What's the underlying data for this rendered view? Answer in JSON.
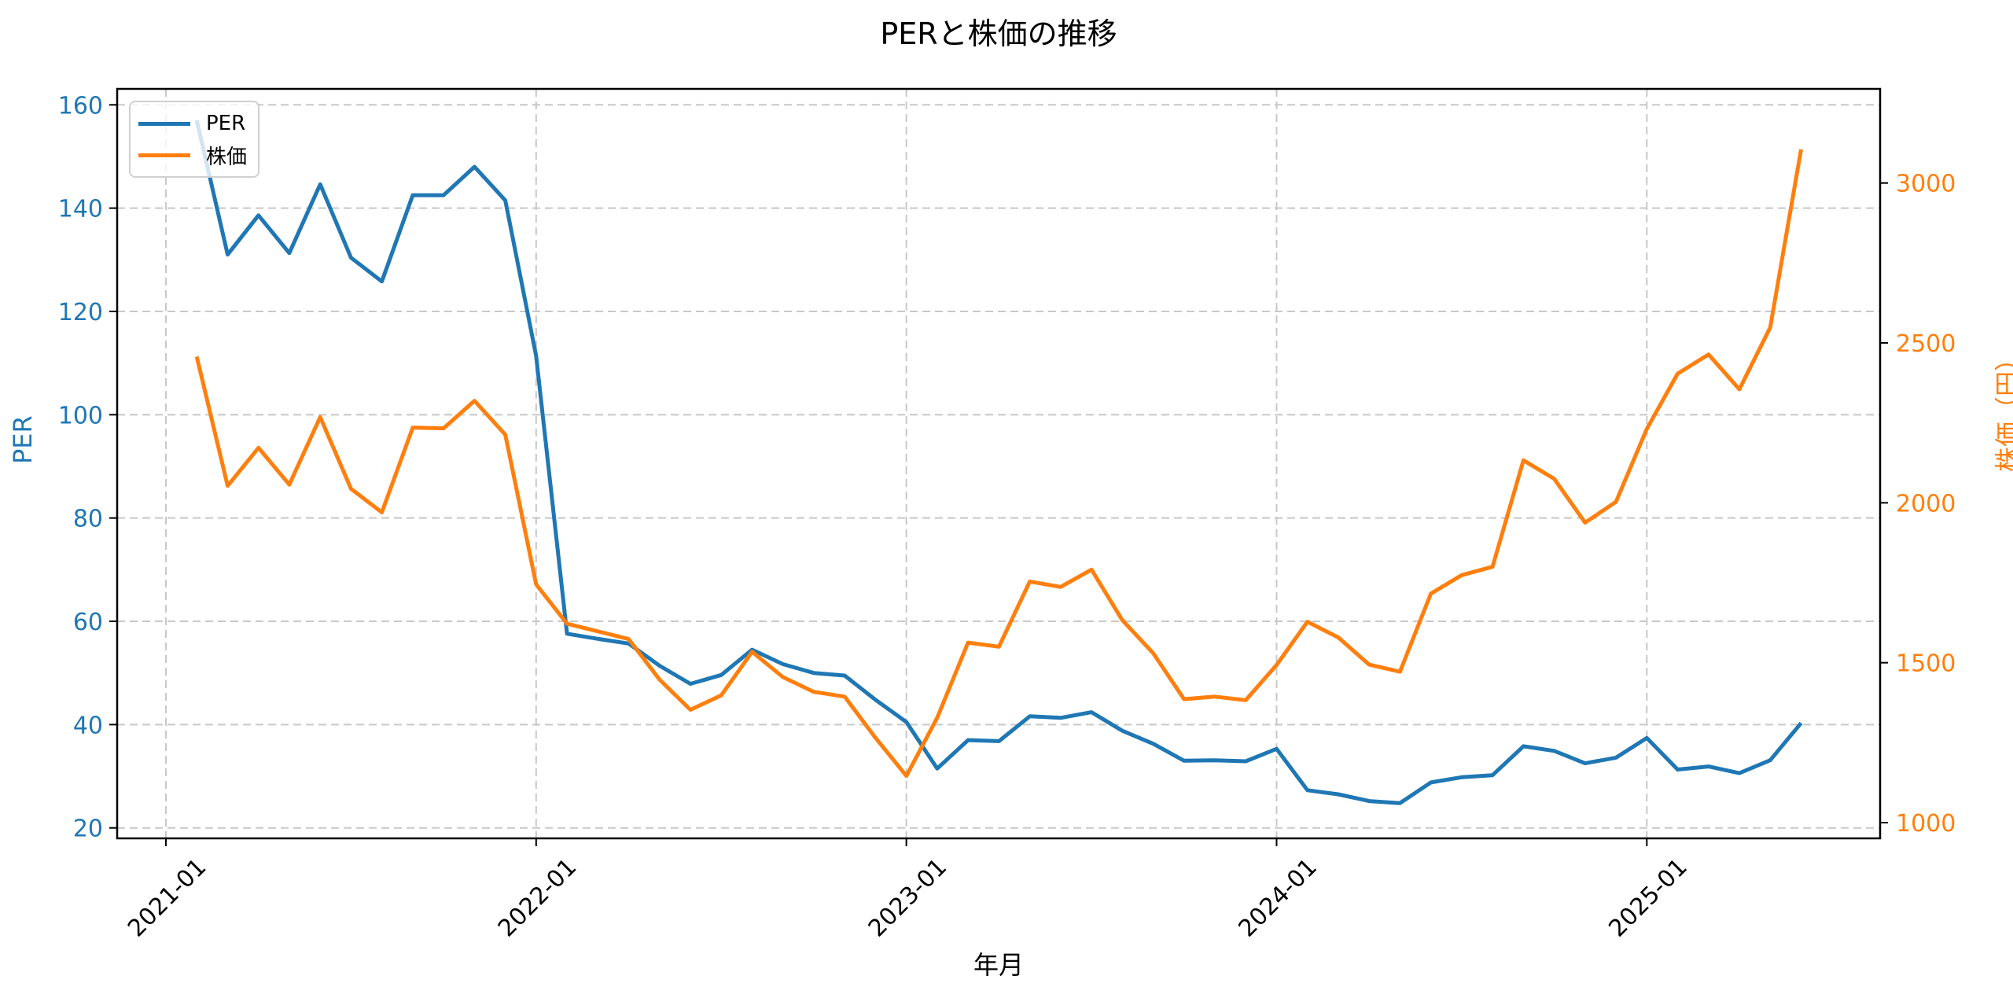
{
  "figure": {
    "title": "PERと株価の推移",
    "xlabel": "年月",
    "ylabel_left": "PER",
    "ylabel_right": "株価（円）",
    "colors": {
      "per": "#1f77b4",
      "price": "#ff7f0e",
      "grid": "#c8c8c8",
      "axis": "#000000"
    },
    "legend": {
      "position": "upper left",
      "items": [
        {
          "label": "PER",
          "color": "#1f77b4"
        },
        {
          "label": "株価",
          "color": "#ff7f0e"
        }
      ]
    }
  },
  "chart_data": {
    "type": "line",
    "title": "PERと株価の推移",
    "xlabel": "年月",
    "ylabel": "PER",
    "ylabel_right": "株価（円）",
    "grid": true,
    "legend_position": "upper left",
    "x_tick_labels": [
      "2021-01",
      "2022-01",
      "2023-01",
      "2024-01",
      "2025-01"
    ],
    "x_tick_rotation": 45,
    "y_left": {
      "label": "PER",
      "ticks": [
        20,
        40,
        60,
        80,
        100,
        120,
        140,
        160
      ],
      "ylim": [
        18,
        163
      ],
      "color": "#1f77b4"
    },
    "y_right": {
      "label": "株価（円）",
      "ticks": [
        1000,
        1500,
        2000,
        2500,
        3000
      ],
      "ylim": [
        951,
        3294
      ],
      "color": "#ff7f0e"
    },
    "x": [
      "2021-02",
      "2021-03",
      "2021-04",
      "2021-05",
      "2021-06",
      "2021-07",
      "2021-08",
      "2021-09",
      "2021-10",
      "2021-11",
      "2021-12",
      "2022-01",
      "2022-02",
      "2022-03",
      "2022-04",
      "2022-05",
      "2022-06",
      "2022-07",
      "2022-08",
      "2022-09",
      "2022-10",
      "2022-11",
      "2022-12",
      "2023-01",
      "2023-02",
      "2023-03",
      "2023-04",
      "2023-05",
      "2023-06",
      "2023-07",
      "2023-08",
      "2023-09",
      "2023-10",
      "2023-11",
      "2023-12",
      "2024-01",
      "2024-02",
      "2024-03",
      "2024-04",
      "2024-05",
      "2024-06",
      "2024-07",
      "2024-08",
      "2024-09",
      "2024-10",
      "2024-11",
      "2024-12",
      "2025-01",
      "2025-02",
      "2025-03",
      "2025-04",
      "2025-05",
      "2025-06"
    ],
    "series": [
      {
        "name": "PER",
        "axis": "left",
        "color": "#1f77b4",
        "values": [
          157.0,
          131.0,
          138.6,
          131.3,
          144.6,
          130.4,
          125.8,
          142.5,
          142.5,
          148.0,
          141.5,
          111.4,
          57.6,
          56.6,
          55.7,
          51.4,
          47.9,
          49.6,
          54.5,
          51.7,
          50.0,
          49.5,
          44.8,
          40.5,
          31.5,
          37.0,
          36.8,
          41.6,
          41.3,
          42.4,
          38.8,
          36.3,
          33.0,
          33.1,
          32.9,
          35.3,
          27.3,
          26.5,
          25.2,
          24.8,
          28.8,
          29.8,
          30.2,
          35.8,
          34.9,
          32.5,
          33.6,
          37.4,
          31.3,
          31.9,
          30.6,
          33.1,
          40.3
        ]
      },
      {
        "name": "株価",
        "axis": "right",
        "color": "#ff7f0e",
        "values": [
          2457,
          2053,
          2172,
          2057,
          2268,
          2044,
          1970,
          2235,
          2233,
          2319,
          2213,
          1745,
          1622,
          1598,
          1574,
          1447,
          1353,
          1398,
          1534,
          1455,
          1409,
          1394,
          1265,
          1146,
          1328,
          1563,
          1550,
          1754,
          1737,
          1791,
          1633,
          1530,
          1386,
          1394,
          1383,
          1493,
          1628,
          1579,
          1494,
          1472,
          1716,
          1774,
          1800,
          2133,
          2075,
          1938,
          2003,
          2231,
          2404,
          2464,
          2355,
          2548,
          3105
        ]
      }
    ]
  }
}
